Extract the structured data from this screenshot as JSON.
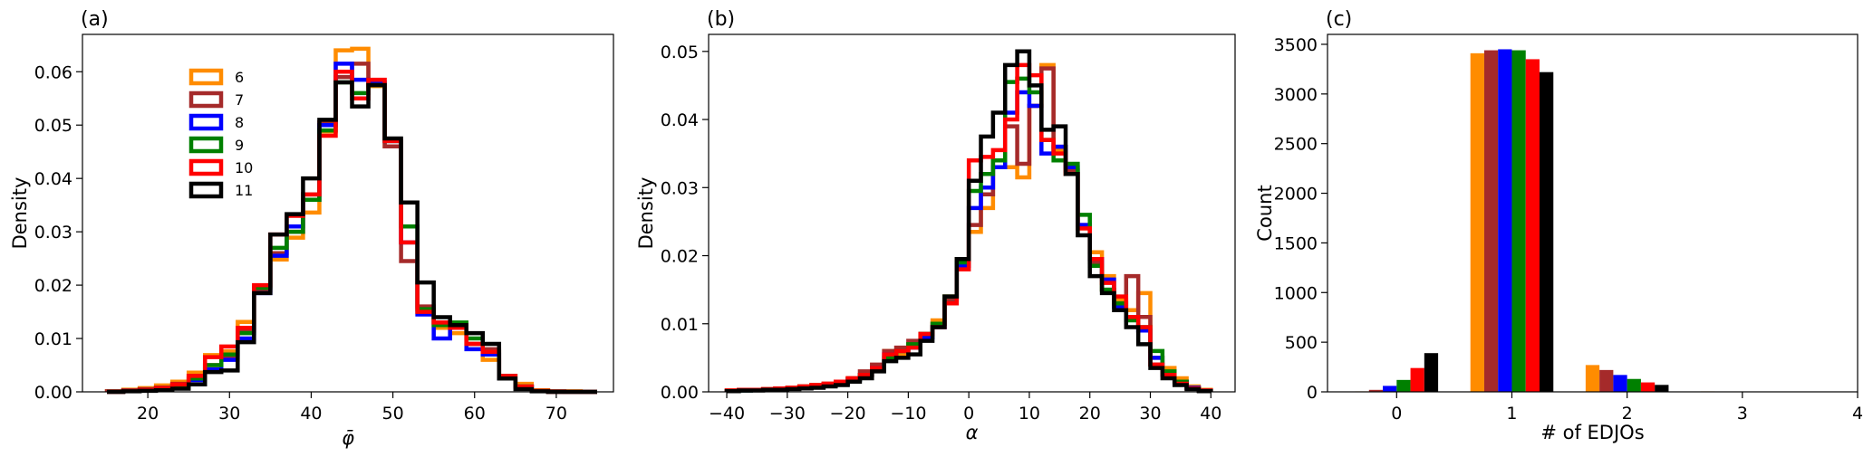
{
  "colors": {
    "6": "#ff8c00",
    "7": "#a52a2a",
    "8": "#0000ff",
    "9": "#008000",
    "10": "#ff0000",
    "11": "#000000"
  },
  "chart_data": [
    {
      "type": "step-histogram",
      "panel_label": "(a)",
      "xlabel": "φ̄",
      "ylabel": "Density",
      "xlim": [
        12,
        77
      ],
      "ylim": [
        0,
        0.067
      ],
      "xticks": [
        20,
        30,
        40,
        50,
        60,
        70
      ],
      "yticks": [
        0.0,
        0.01,
        0.02,
        0.03,
        0.04,
        0.05,
        0.06
      ],
      "ytick_labels": [
        "0.00",
        "0.01",
        "0.02",
        "0.03",
        "0.04",
        "0.05",
        "0.06"
      ],
      "bin_edges": [
        15,
        17,
        19,
        21,
        23,
        25,
        27,
        29,
        31,
        33,
        35,
        37,
        39,
        41,
        43,
        45,
        47,
        49,
        51,
        53,
        55,
        57,
        59,
        61,
        63,
        65,
        67,
        69,
        71,
        73,
        75
      ],
      "legend": {
        "position": "upper-left",
        "labels": [
          "6",
          "7",
          "8",
          "9",
          "10",
          "11"
        ]
      },
      "series": [
        {
          "name": "6",
          "values": [
            0.0001,
            0.0004,
            0.0007,
            0.0012,
            0.0019,
            0.0036,
            0.0069,
            0.0076,
            0.0131,
            0.0198,
            0.0248,
            0.0289,
            0.0336,
            0.0488,
            0.064,
            0.0643,
            0.0573,
            0.046,
            0.028,
            0.015,
            0.012,
            0.011,
            0.009,
            0.006,
            0.003,
            0.0015,
            0.0003,
            0.0001,
            0.0001,
            0
          ]
        },
        {
          "name": "7",
          "values": [
            0.0001,
            0.0003,
            0.0005,
            0.0008,
            0.0015,
            0.003,
            0.005,
            0.0065,
            0.0115,
            0.019,
            0.026,
            0.03,
            0.037,
            0.0505,
            0.059,
            0.0615,
            0.0575,
            0.046,
            0.0245,
            0.016,
            0.013,
            0.012,
            0.009,
            0.008,
            0.003,
            0.001,
            0.0002,
            0.0001,
            0,
            0
          ]
        },
        {
          "name": "8",
          "values": [
            0,
            0.0002,
            0.0004,
            0.0006,
            0.0012,
            0.0022,
            0.0042,
            0.006,
            0.01,
            0.0185,
            0.0255,
            0.031,
            0.036,
            0.05,
            0.0615,
            0.0585,
            0.058,
            0.047,
            0.028,
            0.0145,
            0.01,
            0.012,
            0.008,
            0.007,
            0.0025,
            0.001,
            0.0002,
            0,
            0,
            0
          ]
        },
        {
          "name": "9",
          "values": [
            0,
            0.0002,
            0.0004,
            0.0006,
            0.001,
            0.0025,
            0.005,
            0.007,
            0.011,
            0.0195,
            0.027,
            0.03,
            0.036,
            0.049,
            0.058,
            0.056,
            0.0575,
            0.047,
            0.031,
            0.0155,
            0.0125,
            0.013,
            0.01,
            0.0075,
            0.003,
            0.001,
            0.0002,
            0,
            0,
            0
          ]
        },
        {
          "name": "10",
          "values": [
            0,
            0.0002,
            0.0004,
            0.0007,
            0.0014,
            0.003,
            0.0065,
            0.0085,
            0.012,
            0.02,
            0.0295,
            0.033,
            0.037,
            0.048,
            0.06,
            0.055,
            0.0585,
            0.047,
            0.028,
            0.015,
            0.013,
            0.012,
            0.009,
            0.0075,
            0.003,
            0.001,
            0.0002,
            0,
            0,
            0
          ]
        },
        {
          "name": "11",
          "values": [
            0,
            0.0001,
            0.0002,
            0.0003,
            0.0006,
            0.0014,
            0.0037,
            0.004,
            0.0093,
            0.0185,
            0.0295,
            0.0333,
            0.04,
            0.051,
            0.058,
            0.0535,
            0.0575,
            0.0475,
            0.0355,
            0.0205,
            0.014,
            0.0125,
            0.011,
            0.009,
            0.0025,
            0.0005,
            0.0001,
            0,
            0,
            0
          ]
        }
      ]
    },
    {
      "type": "step-histogram",
      "panel_label": "(b)",
      "xlabel": "α",
      "ylabel": "Density",
      "xlim": [
        -43,
        44
      ],
      "ylim": [
        0,
        0.0525
      ],
      "xticks": [
        -40,
        -30,
        -20,
        -10,
        0,
        10,
        20,
        30,
        40
      ],
      "xtick_labels": [
        "−40",
        "−30",
        "−20",
        "−10",
        "0",
        "10",
        "20",
        "30",
        "40"
      ],
      "yticks": [
        0.0,
        0.01,
        0.02,
        0.03,
        0.04,
        0.05
      ],
      "ytick_labels": [
        "0.00",
        "0.01",
        "0.02",
        "0.03",
        "0.04",
        "0.05"
      ],
      "bin_edges": [
        -40,
        -38,
        -36,
        -34,
        -32,
        -30,
        -28,
        -26,
        -24,
        -22,
        -20,
        -18,
        -16,
        -14,
        -12,
        -10,
        -8,
        -6,
        -4,
        -2,
        0,
        2,
        4,
        6,
        8,
        10,
        12,
        14,
        16,
        18,
        20,
        22,
        24,
        26,
        28,
        30,
        32,
        34,
        36,
        38,
        40
      ],
      "series": [
        {
          "name": "6",
          "values": [
            0.0002,
            0.0003,
            0.0003,
            0.0004,
            0.0005,
            0.0006,
            0.0008,
            0.001,
            0.0012,
            0.0015,
            0.002,
            0.0025,
            0.0035,
            0.006,
            0.0055,
            0.007,
            0.0085,
            0.0105,
            0.014,
            0.0195,
            0.0235,
            0.027,
            0.033,
            0.033,
            0.0315,
            0.042,
            0.048,
            0.0355,
            0.032,
            0.024,
            0.0205,
            0.017,
            0.0135,
            0.012,
            0.0145,
            0.005,
            0.0035,
            0.002,
            0.0008,
            0.0003
          ]
        },
        {
          "name": "7",
          "values": [
            0.0002,
            0.0002,
            0.0003,
            0.0004,
            0.0005,
            0.0006,
            0.0008,
            0.001,
            0.0012,
            0.0015,
            0.002,
            0.003,
            0.004,
            0.006,
            0.0065,
            0.0075,
            0.0085,
            0.01,
            0.0135,
            0.019,
            0.0245,
            0.029,
            0.034,
            0.039,
            0.0335,
            0.042,
            0.0475,
            0.036,
            0.0325,
            0.0245,
            0.019,
            0.015,
            0.013,
            0.017,
            0.011,
            0.004,
            0.0025,
            0.0015,
            0.0006,
            0.0002
          ]
        },
        {
          "name": "8",
          "values": [
            0.0001,
            0.0002,
            0.0003,
            0.0003,
            0.0004,
            0.0005,
            0.0006,
            0.0008,
            0.001,
            0.0012,
            0.0018,
            0.0025,
            0.0035,
            0.0055,
            0.006,
            0.0065,
            0.008,
            0.0095,
            0.013,
            0.0185,
            0.027,
            0.03,
            0.033,
            0.041,
            0.044,
            0.042,
            0.035,
            0.036,
            0.033,
            0.0245,
            0.0195,
            0.0165,
            0.0125,
            0.011,
            0.009,
            0.005,
            0.0025,
            0.0015,
            0.0006,
            0.0002
          ]
        },
        {
          "name": "9",
          "values": [
            0.0001,
            0.0002,
            0.0003,
            0.0003,
            0.0004,
            0.0005,
            0.0007,
            0.0009,
            0.0011,
            0.0013,
            0.0018,
            0.0025,
            0.0033,
            0.005,
            0.006,
            0.007,
            0.0085,
            0.01,
            0.014,
            0.019,
            0.0295,
            0.032,
            0.034,
            0.0455,
            0.046,
            0.044,
            0.037,
            0.034,
            0.0335,
            0.026,
            0.0185,
            0.015,
            0.013,
            0.0105,
            0.0095,
            0.006,
            0.003,
            0.0015,
            0.0005,
            0.0002
          ]
        },
        {
          "name": "10",
          "values": [
            0.0002,
            0.0003,
            0.0003,
            0.0004,
            0.0005,
            0.0006,
            0.0008,
            0.001,
            0.0012,
            0.0015,
            0.002,
            0.0025,
            0.0035,
            0.0055,
            0.006,
            0.0065,
            0.0085,
            0.0095,
            0.013,
            0.018,
            0.034,
            0.0345,
            0.0355,
            0.04,
            0.048,
            0.0465,
            0.037,
            0.035,
            0.032,
            0.024,
            0.0195,
            0.016,
            0.014,
            0.011,
            0.0095,
            0.004,
            0.0025,
            0.0012,
            0.0005,
            0.0002
          ]
        },
        {
          "name": "11",
          "values": [
            0.0001,
            0.0002,
            0.0002,
            0.0003,
            0.0003,
            0.0004,
            0.0005,
            0.0006,
            0.0008,
            0.001,
            0.0015,
            0.002,
            0.003,
            0.0045,
            0.005,
            0.0055,
            0.0075,
            0.0095,
            0.014,
            0.0195,
            0.031,
            0.0375,
            0.041,
            0.048,
            0.05,
            0.045,
            0.0385,
            0.039,
            0.032,
            0.023,
            0.017,
            0.0145,
            0.012,
            0.0095,
            0.007,
            0.0035,
            0.002,
            0.001,
            0.0004,
            0.0001
          ]
        }
      ]
    },
    {
      "type": "bar",
      "panel_label": "(c)",
      "xlabel": "# of EDJOs",
      "ylabel": "Count",
      "xlim": [
        -0.6,
        4
      ],
      "ylim": [
        0,
        3600
      ],
      "xticks": [
        0,
        1,
        2,
        3,
        4
      ],
      "yticks": [
        0,
        500,
        1000,
        1500,
        2000,
        2500,
        3000,
        3500
      ],
      "categories": [
        0,
        1,
        2,
        3
      ],
      "series": [
        {
          "name": "6",
          "values": [
            5,
            3410,
            270,
            5
          ]
        },
        {
          "name": "7",
          "values": [
            20,
            3440,
            220,
            3
          ]
        },
        {
          "name": "8",
          "values": [
            60,
            3450,
            170,
            2
          ]
        },
        {
          "name": "9",
          "values": [
            120,
            3440,
            130,
            1
          ]
        },
        {
          "name": "10",
          "values": [
            240,
            3350,
            95,
            0
          ]
        },
        {
          "name": "11",
          "values": [
            390,
            3220,
            70,
            0
          ]
        }
      ]
    }
  ]
}
